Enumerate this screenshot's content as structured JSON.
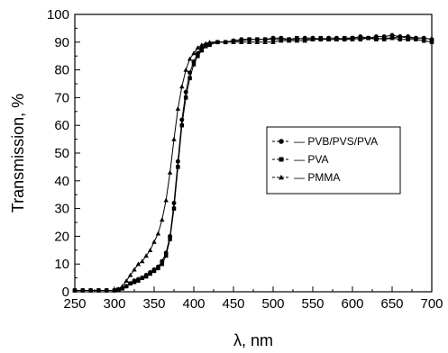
{
  "chart_data": {
    "type": "line",
    "xlabel": "λ, nm",
    "ylabel": "Transmission, %",
    "xlim": [
      250,
      700
    ],
    "ylim": [
      0,
      100
    ],
    "xticks": [
      250,
      300,
      350,
      400,
      450,
      500,
      550,
      600,
      650,
      700
    ],
    "yticks": [
      0,
      10,
      20,
      30,
      40,
      50,
      60,
      70,
      80,
      90,
      100
    ],
    "grid": false,
    "legend_position": "center-right",
    "series": [
      {
        "name": "PVB/PVS/PVA",
        "marker": "circle",
        "x": [
          250,
          260,
          270,
          280,
          290,
          300,
          305,
          310,
          315,
          320,
          325,
          330,
          335,
          340,
          345,
          350,
          355,
          360,
          365,
          370,
          375,
          380,
          385,
          390,
          395,
          400,
          405,
          410,
          415,
          420,
          430,
          440,
          450,
          460,
          470,
          480,
          490,
          500,
          510,
          520,
          530,
          540,
          550,
          560,
          570,
          580,
          590,
          600,
          610,
          620,
          630,
          640,
          650,
          660,
          670,
          680,
          690,
          700
        ],
        "y": [
          0.5,
          0.5,
          0.5,
          0.5,
          0.5,
          0.5,
          0.8,
          1.2,
          2,
          3,
          4,
          4.5,
          5,
          6,
          7,
          8,
          9,
          11,
          14,
          20,
          32,
          47,
          62,
          72,
          79,
          83,
          86,
          88,
          89,
          89.5,
          90,
          90,
          90.5,
          91,
          91,
          91,
          91,
          91.5,
          91.5,
          91,
          91,
          91.5,
          91.5,
          91,
          91.5,
          91.5,
          91,
          91.5,
          92,
          91.5,
          92,
          92,
          92.5,
          92,
          92,
          91.5,
          91.5,
          91
        ]
      },
      {
        "name": "PVA",
        "marker": "square",
        "x": [
          250,
          260,
          270,
          280,
          290,
          300,
          305,
          310,
          315,
          320,
          325,
          330,
          335,
          340,
          345,
          350,
          355,
          360,
          365,
          370,
          375,
          380,
          385,
          390,
          395,
          400,
          405,
          410,
          415,
          420,
          430,
          440,
          450,
          460,
          470,
          480,
          490,
          500,
          510,
          520,
          530,
          540,
          550,
          560,
          570,
          580,
          590,
          600,
          610,
          620,
          630,
          640,
          650,
          660,
          670,
          680,
          690,
          700
        ],
        "y": [
          0.5,
          0.5,
          0.5,
          0.5,
          0.5,
          0.5,
          0.8,
          1.2,
          2,
          3,
          3.5,
          4,
          5,
          5.5,
          6.5,
          7.5,
          8.5,
          10,
          13,
          19,
          30,
          45,
          60,
          70,
          77,
          82,
          85,
          87,
          88.5,
          89,
          90,
          90,
          90.5,
          90.5,
          91,
          91,
          91,
          91,
          91,
          91,
          91.5,
          91,
          91,
          91.5,
          91,
          91,
          91.5,
          91.5,
          91,
          91.5,
          91,
          91.5,
          91.5,
          91,
          91,
          91,
          90.5,
          90
        ]
      },
      {
        "name": "PMMA",
        "marker": "triangle",
        "x": [
          250,
          260,
          270,
          280,
          290,
          300,
          305,
          310,
          315,
          320,
          325,
          330,
          335,
          340,
          345,
          350,
          355,
          360,
          365,
          370,
          375,
          380,
          385,
          390,
          395,
          400,
          405,
          410,
          415,
          420,
          430,
          440,
          450,
          460,
          470,
          480,
          490,
          500,
          510,
          520,
          530,
          540,
          550,
          560,
          570,
          580,
          590,
          600,
          610,
          620,
          630,
          640,
          650,
          660,
          670,
          680,
          690,
          700
        ],
        "y": [
          0.5,
          0.5,
          0.5,
          0.5,
          0.5,
          0.5,
          1,
          2,
          4,
          6,
          8,
          10,
          11,
          13,
          15,
          18,
          21,
          26,
          33,
          43,
          55,
          66,
          74,
          80,
          84,
          86,
          88,
          89,
          89.5,
          90,
          90,
          90,
          90,
          90,
          90,
          90,
          90,
          90,
          90.5,
          90.5,
          90.5,
          90.5,
          91,
          91,
          91,
          91,
          91,
          91,
          91.5,
          91.5,
          91.5,
          91,
          91.5,
          92,
          91.5,
          91.5,
          91.5,
          91
        ]
      }
    ]
  }
}
